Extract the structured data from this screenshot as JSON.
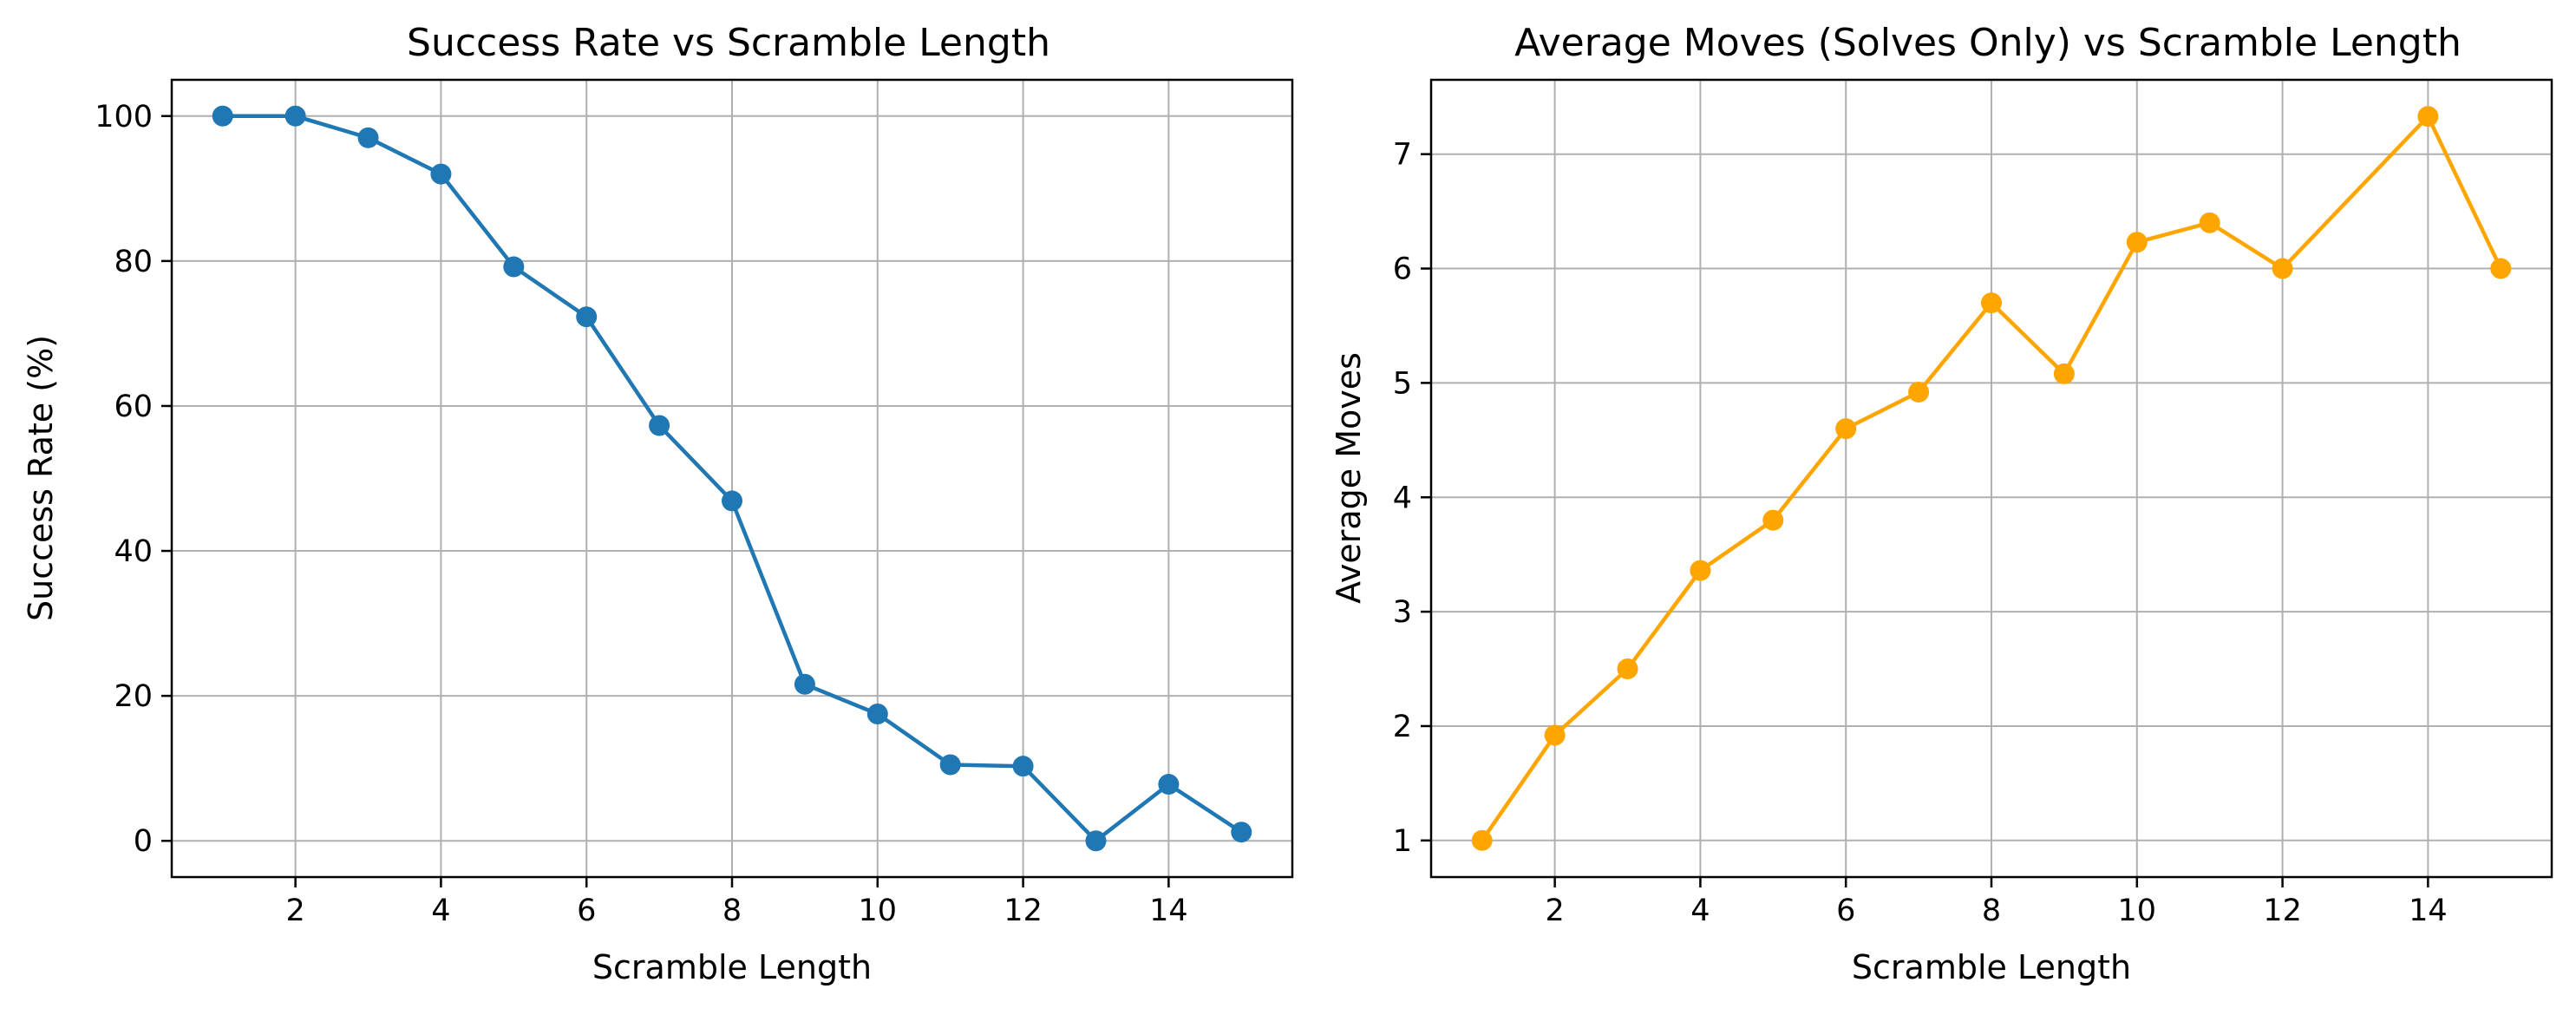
{
  "chart_data": [
    {
      "type": "line",
      "title": "Success Rate vs Scramble Length",
      "xlabel": "Scramble Length",
      "ylabel": "Success Rate (%)",
      "grid": true,
      "xlim": [
        0.3,
        15.7
      ],
      "ylim": [
        -5,
        105
      ],
      "xticks": [
        2,
        4,
        6,
        8,
        10,
        12,
        14
      ],
      "yticks": [
        0,
        20,
        40,
        60,
        80,
        100
      ],
      "series": [
        {
          "color": "#1f77b4",
          "marker": "circle",
          "x": [
            1,
            2,
            3,
            4,
            5,
            6,
            7,
            8,
            9,
            10,
            11,
            12,
            13,
            14,
            15
          ],
          "y": [
            100,
            100,
            97,
            92,
            79.2,
            72.3,
            57.3,
            46.9,
            21.6,
            17.5,
            10.5,
            10.3,
            0,
            7.8,
            1.2
          ]
        }
      ]
    },
    {
      "type": "line",
      "title": "Average Moves (Solves Only) vs Scramble Length",
      "xlabel": "Scramble Length",
      "ylabel": "Average Moves",
      "grid": true,
      "xlim": [
        0.3,
        15.7
      ],
      "ylim": [
        0.68,
        7.65
      ],
      "xticks": [
        2,
        4,
        6,
        8,
        10,
        12,
        14
      ],
      "yticks": [
        1,
        2,
        3,
        4,
        5,
        6,
        7
      ],
      "series": [
        {
          "color": "#ffa500",
          "marker": "circle",
          "x": [
            1,
            2,
            3,
            4,
            5,
            6,
            7,
            8,
            9,
            10,
            11,
            12,
            14,
            15
          ],
          "y": [
            1.0,
            1.92,
            2.5,
            3.36,
            3.8,
            4.6,
            4.92,
            5.7,
            5.08,
            6.23,
            6.4,
            6.0,
            7.33,
            6.0
          ]
        }
      ]
    }
  ]
}
